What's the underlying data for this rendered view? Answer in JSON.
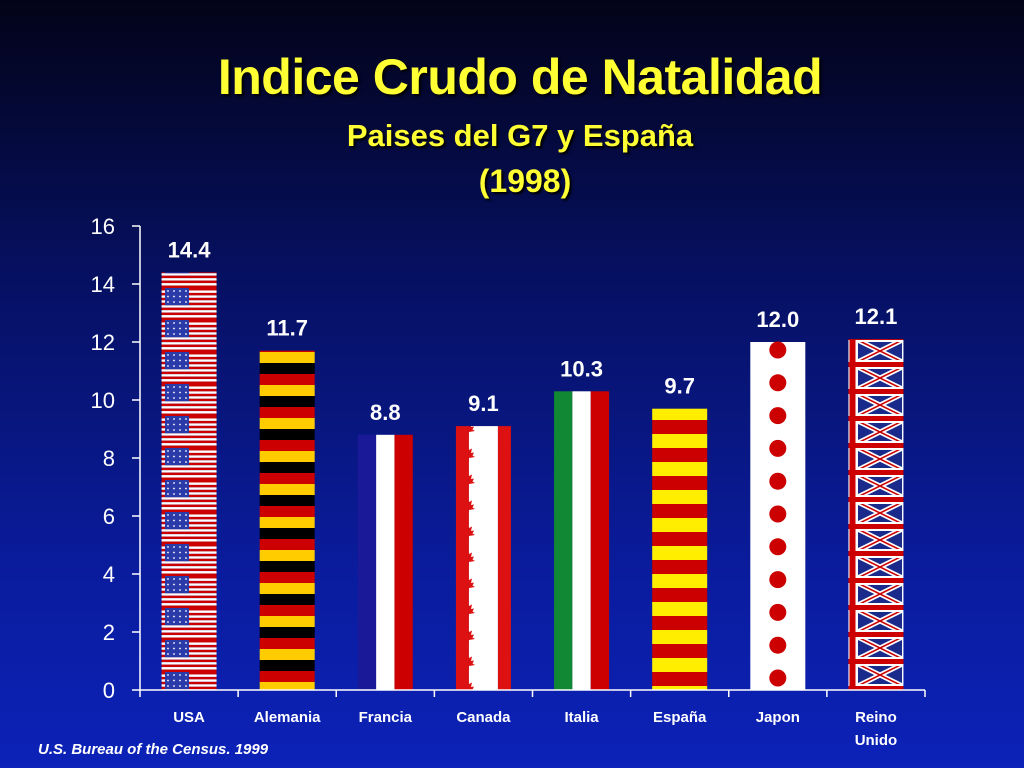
{
  "header": {
    "title": "Indice Crudo de Natalidad",
    "subtitle": "Paises del G7 y España",
    "year": "(1998)"
  },
  "footer": {
    "source": "U.S. Bureau of the Census. 1999"
  },
  "chart_data": {
    "type": "bar",
    "title": "Indice Crudo de Natalidad",
    "subtitle": "Paises del G7 y España (1998)",
    "xlabel": "",
    "ylabel": "",
    "ylim": [
      0,
      16
    ],
    "yticks": [
      0,
      2,
      4,
      6,
      8,
      10,
      12,
      14,
      16
    ],
    "grid": false,
    "categories": [
      {
        "label": [
          "USA"
        ],
        "flag": "usa-flag"
      },
      {
        "label": [
          "Alemania"
        ],
        "flag": "germany-flag"
      },
      {
        "label": [
          "Francia"
        ],
        "flag": "france-flag"
      },
      {
        "label": [
          "Canada"
        ],
        "flag": "canada-flag"
      },
      {
        "label": [
          "Italia"
        ],
        "flag": "italy-flag"
      },
      {
        "label": [
          "España"
        ],
        "flag": "spain-flag"
      },
      {
        "label": [
          "Japon"
        ],
        "flag": "japan-flag"
      },
      {
        "label": [
          "Reino",
          "Unido"
        ],
        "flag": "uk-flag"
      }
    ],
    "values": [
      14.4,
      11.7,
      8.8,
      9.1,
      10.3,
      9.7,
      12.0,
      12.1
    ],
    "value_labels": [
      "14.4",
      "11.7",
      "8.8",
      "9.1",
      "10.3",
      "9.7",
      "12.0",
      "12.1"
    ]
  },
  "colors": {
    "title": "#ffff33",
    "axis": "#ffffff",
    "red": "#cc0000",
    "white": "#ffffff",
    "blue_usa": "#2a3aa8",
    "blue_fr": "#1a1a99",
    "black": "#000000",
    "gold": "#ffcc00",
    "yellow": "#ffee00",
    "green": "#118833",
    "canada_red": "#dd1111",
    "uk_blue": "#1a2a8a"
  }
}
